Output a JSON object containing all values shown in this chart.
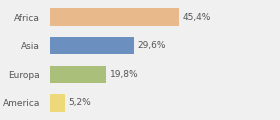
{
  "categories": [
    "Africa",
    "Asia",
    "Europa",
    "America"
  ],
  "values": [
    45.4,
    29.6,
    19.8,
    5.2
  ],
  "labels": [
    "45,4%",
    "29,6%",
    "19,8%",
    "5,2%"
  ],
  "colors": [
    "#E8B98A",
    "#6B8FBF",
    "#AABF7A",
    "#EDD87A"
  ],
  "background_color": "#f0f0f0",
  "xlim": [
    0,
    80
  ],
  "label_fontsize": 6.5,
  "tick_fontsize": 6.5,
  "bar_height": 0.6
}
